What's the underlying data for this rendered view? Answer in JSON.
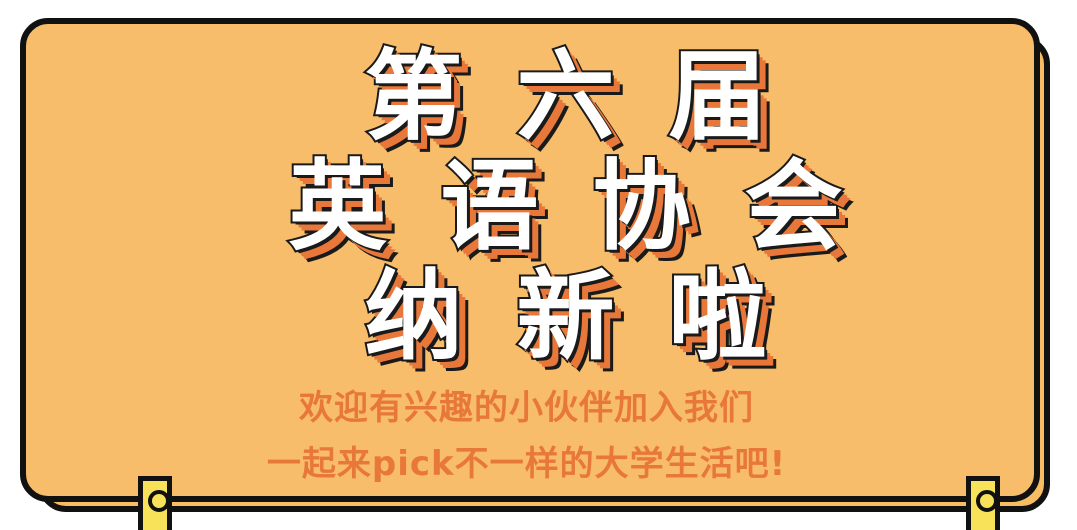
{
  "poster": {
    "title_lines": [
      "第六届",
      "英语协会",
      "纳新啦"
    ],
    "subtitle_lines": [
      "欢迎有兴趣的小伙伴加入我们",
      "一起来pick不一样的大学生活吧!"
    ]
  },
  "colors": {
    "background": "#f8bd6a",
    "border": "#111111",
    "title_fill": "#ffffff",
    "title_shadow": "#e8773a",
    "subtitle": "#e8773a",
    "peg": "#f7e25a"
  }
}
